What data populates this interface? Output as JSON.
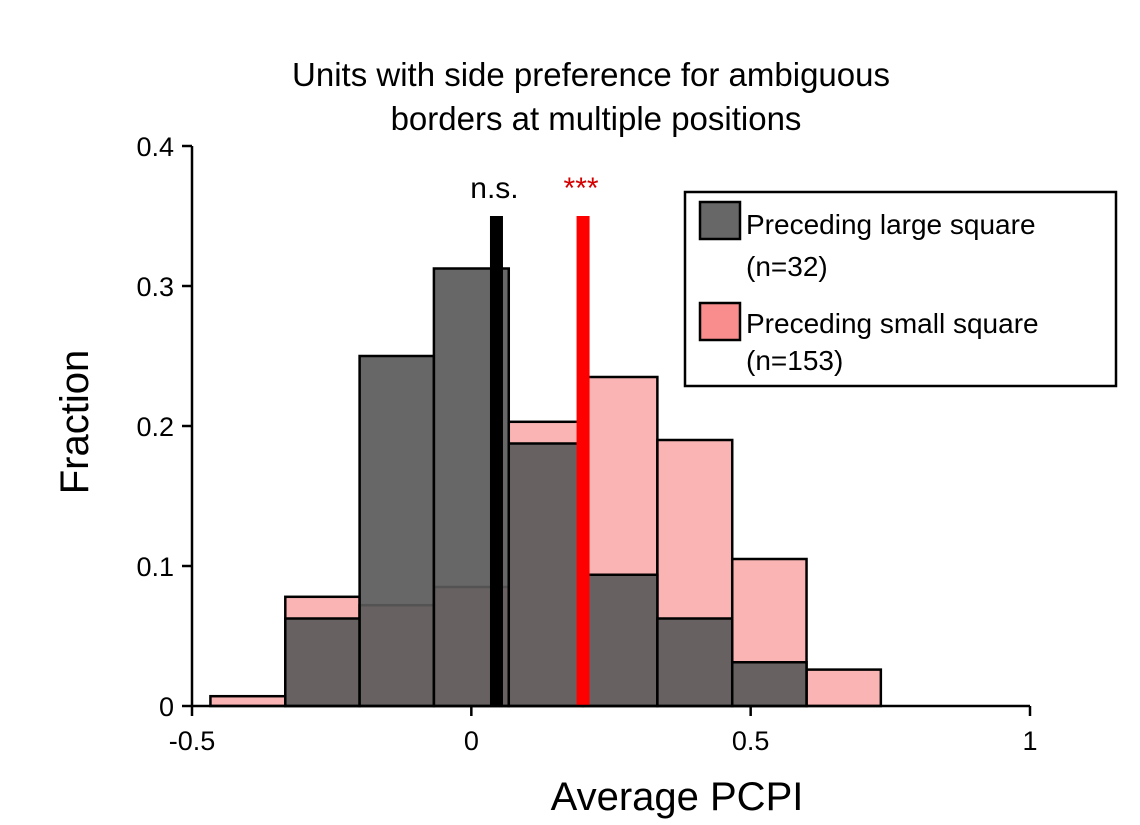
{
  "chart_data": {
    "type": "bar",
    "title_lines": [
      "Units with side preference for ambiguous",
      "borders at multiple positions"
    ],
    "xlabel": "Average PCPI",
    "ylabel": "Fraction",
    "xlim": [
      -0.5,
      1
    ],
    "ylim": [
      0,
      0.4
    ],
    "xticks": [
      -0.5,
      0,
      0.5,
      1
    ],
    "xtick_labels": [
      "-0.5",
      "0",
      "0.5",
      "1"
    ],
    "yticks": [
      0,
      0.1,
      0.2,
      0.3,
      0.4
    ],
    "ytick_labels": [
      "0",
      "0.1",
      "0.2",
      "0.3",
      "0.4"
    ],
    "bin_edges": [
      -0.467,
      -0.333,
      -0.2,
      -0.067,
      0.067,
      0.2,
      0.333,
      0.467,
      0.6,
      0.733
    ],
    "series": [
      {
        "name": "Preceding small square",
        "legend_label": "Preceding small square",
        "legend_n": "(n=153)",
        "color": "#f98c8c",
        "opacity": 0.65,
        "values": [
          0.007,
          0.078,
          0.072,
          0.085,
          0.203,
          0.235,
          0.19,
          0.105,
          0.026
        ]
      },
      {
        "name": "Preceding large square",
        "legend_label": "Preceding large square",
        "legend_n": "(n=32)",
        "color": "#5a5a5a",
        "opacity": 0.92,
        "values": [
          0,
          0.0625,
          0.25,
          0.3125,
          0.1875,
          0.09375,
          0.0625,
          0.03125,
          0
        ]
      }
    ],
    "mean_lines": [
      {
        "series": "Preceding large square",
        "x": 0.045,
        "color": "#000000",
        "label": "n.s.",
        "label_color": "#000000"
      },
      {
        "series": "Preceding small square",
        "x": 0.2,
        "color": "#ff0000",
        "label": "***",
        "label_color": "#d40000"
      }
    ],
    "mean_line_top": 0.35,
    "legend_position": "top-right",
    "grid": false
  }
}
